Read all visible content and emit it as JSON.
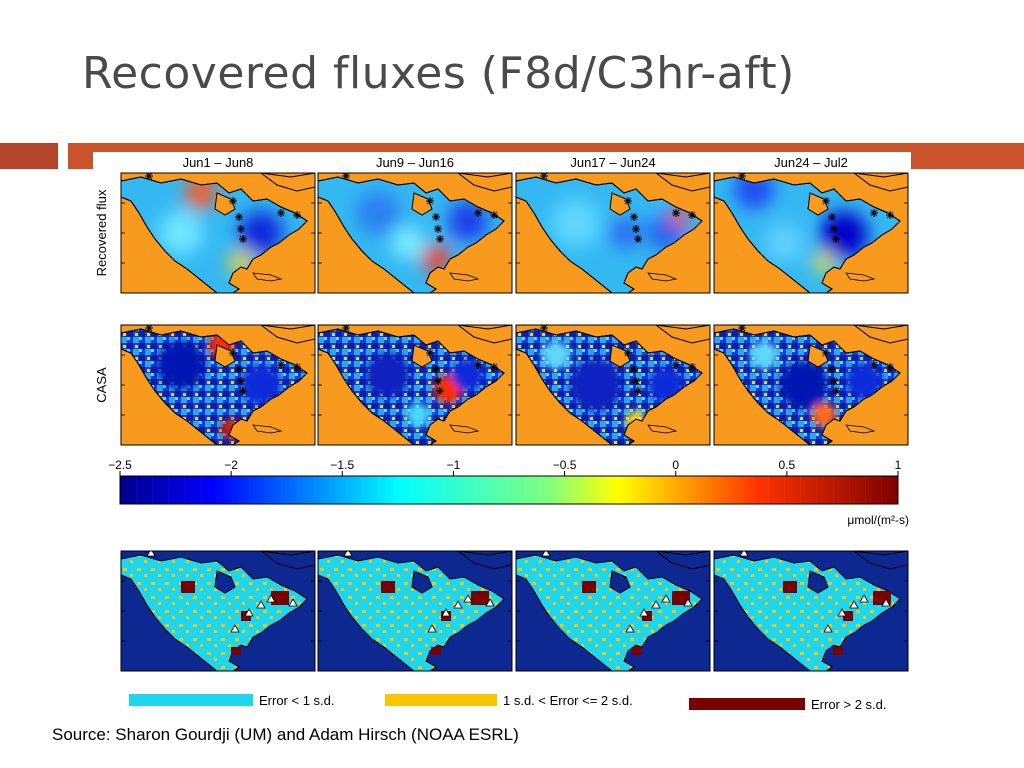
{
  "title": "Recovered fluxes (F8d/C3hr-aft)",
  "source": "Source: Sharon Gourdji (UM) and Adam Hirsch (NOAA ESRL)",
  "periods": [
    "Jun1 – Jun8",
    "Jun9 – Jun16",
    "Jun17 – Jun24",
    "Jun24 – Jul2"
  ],
  "row_labels": {
    "recovered": "Recovered flux",
    "casa": "CASA"
  },
  "colorbar": {
    "ticks": [
      "−2.5",
      "−2",
      "−1.5",
      "−1",
      "−0.5",
      "0",
      "0.5",
      "1"
    ],
    "unit": "μmol/(m²-s)"
  },
  "error_legend": [
    {
      "label": "Error < 1 s.d.",
      "color": "#1fd6ef"
    },
    {
      "label": "1 s.d. < Error <= 2 s.d.",
      "color": "#f7c600"
    },
    {
      "label": "Error > 2 s.d.",
      "color": "#7a0000"
    }
  ],
  "colors": {
    "accent": "#c9532b",
    "ocean_flux": "#f79a1d",
    "ocean_error": "#0d2890"
  },
  "icons": [
    "asterisk-marker-icon",
    "triangle-marker-icon"
  ]
}
